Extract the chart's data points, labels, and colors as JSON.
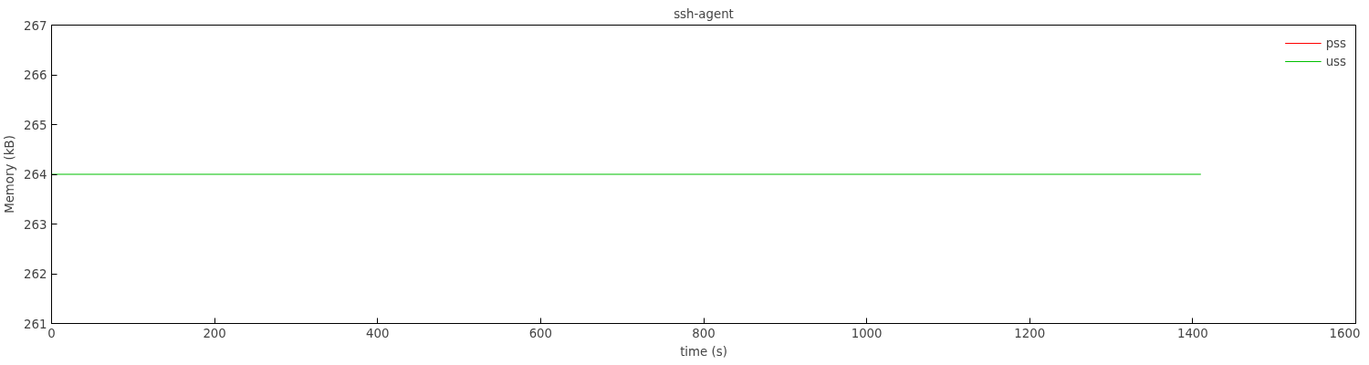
{
  "chart_data": {
    "type": "line",
    "title": "ssh-agent",
    "xlabel": "time (s)",
    "ylabel": "Memory (kB)",
    "x": [
      0,
      1410
    ],
    "series": [
      {
        "name": "pss",
        "color": "#ff0000",
        "values": [
          null,
          null
        ]
      },
      {
        "name": "uss",
        "color": "#00c000",
        "values": [
          264,
          264
        ]
      }
    ],
    "xlim": [
      0,
      1600
    ],
    "xticks": [
      0,
      200,
      400,
      600,
      800,
      1000,
      1200,
      1400,
      1600
    ],
    "ylim": [
      261,
      267
    ],
    "yticks": [
      261,
      262,
      263,
      264,
      265,
      266,
      267
    ],
    "grid": false,
    "legend": "top right"
  }
}
